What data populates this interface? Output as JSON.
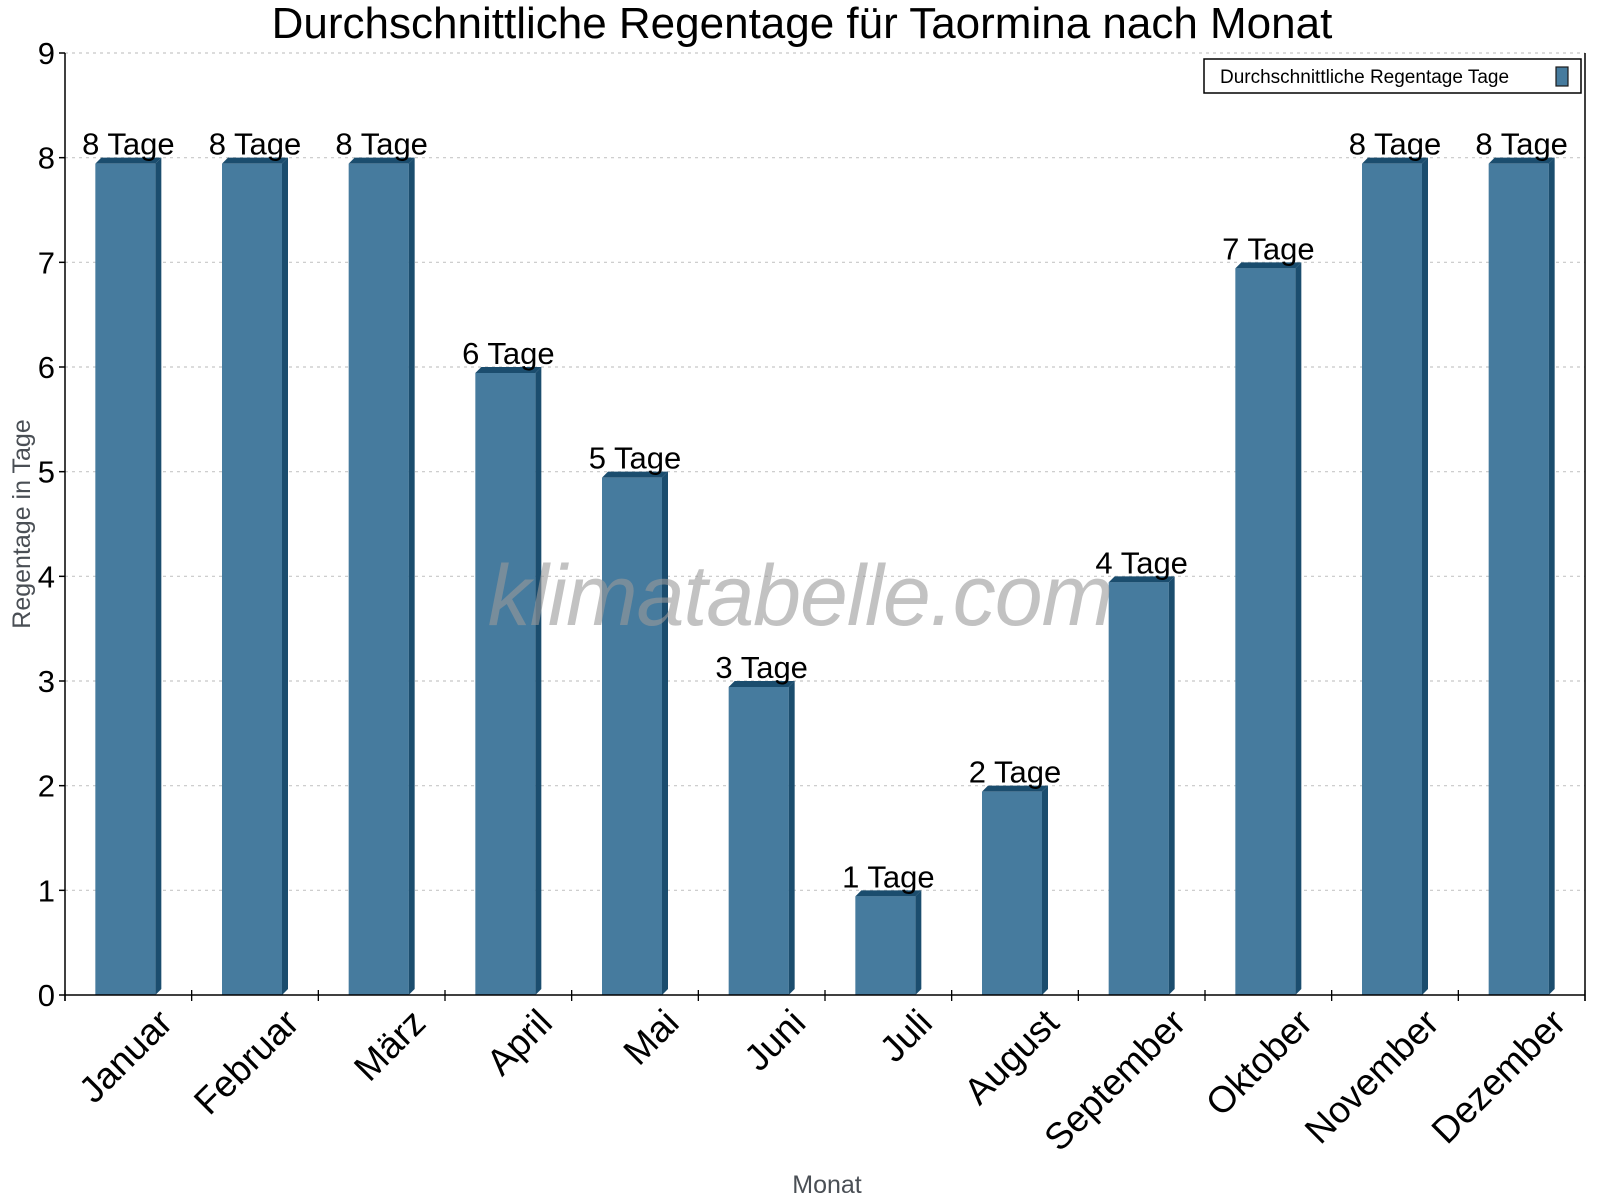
{
  "chart_data": {
    "type": "bar",
    "title": "Durchschnittliche Regentage für Taormina nach Monat",
    "xlabel": "Monat",
    "ylabel": "Regentage in Tage",
    "categories": [
      "Januar",
      "Februar",
      "März",
      "April",
      "Mai",
      "Juni",
      "Juli",
      "August",
      "September",
      "Oktober",
      "November",
      "Dezember"
    ],
    "series": [
      {
        "name": "Durchschnittliche Regentage Tage",
        "values": [
          8,
          8,
          8,
          6,
          5,
          3,
          1,
          2,
          4,
          7,
          8,
          8
        ],
        "data_labels": [
          "8 Tage",
          "8 Tage",
          "8 Tage",
          "6 Tage",
          "5 Tage",
          "3 Tage",
          "1 Tage",
          "2 Tage",
          "4 Tage",
          "7 Tage",
          "8 Tage",
          "8 Tage"
        ]
      }
    ],
    "ylim": [
      0,
      9
    ],
    "yticks": [
      0,
      1,
      2,
      3,
      4,
      5,
      6,
      7,
      8,
      9
    ],
    "grid": "horizontal dotted",
    "legend_position": "top-right",
    "watermark": "klimatabelle.com"
  },
  "colors": {
    "bar_front": "#467b9e",
    "bar_side": "#1b4d6e",
    "grid": "#c8c8c8",
    "axis": "#000000",
    "axis_title": "#4a4f55"
  }
}
